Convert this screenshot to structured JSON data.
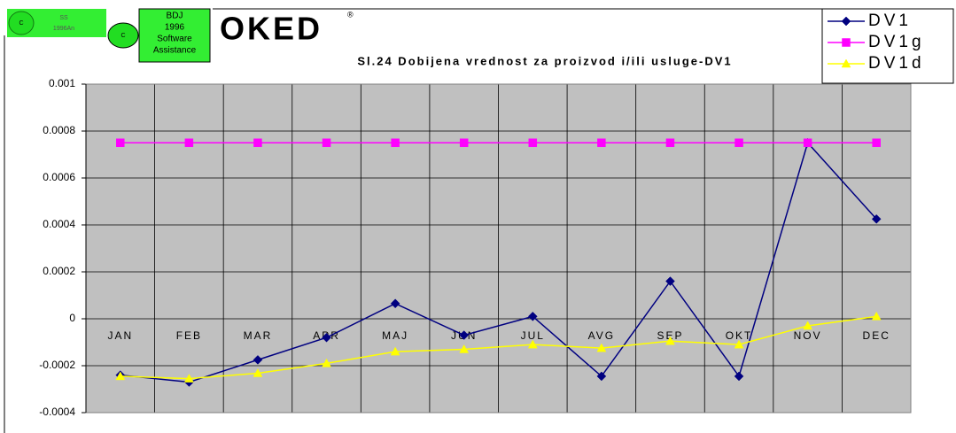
{
  "logos": {
    "badge_small_1": "C",
    "badge_small_2": "SS",
    "badge_small_3": "1996An",
    "badge_c": "C",
    "bdj_lines": [
      "BDJ",
      "1996",
      "Software",
      "Assistance"
    ],
    "brand": "OKED",
    "registered": "®"
  },
  "chart_data": {
    "type": "line",
    "title": "Sl.24 Dobijena vrednost za proizvod i/ili usluge-DV1",
    "categories": [
      "JAN",
      "FEB",
      "MAR",
      "APR",
      "MAJ",
      "JUN",
      "JUL",
      "AVG",
      "SEP",
      "OKT",
      "NOV",
      "DEC"
    ],
    "series": [
      {
        "name": "DV1",
        "color": "#000080",
        "marker": "diamond",
        "values": [
          -0.00024,
          -0.00027,
          -0.000175,
          -8e-05,
          6.5e-05,
          -7e-05,
          1e-05,
          -0.000245,
          0.00016,
          -0.000245,
          0.00075,
          0.000425
        ]
      },
      {
        "name": "DV1g",
        "color": "#ff00ff",
        "marker": "square",
        "values": [
          0.00075,
          0.00075,
          0.00075,
          0.00075,
          0.00075,
          0.00075,
          0.00075,
          0.00075,
          0.00075,
          0.00075,
          0.00075,
          0.00075
        ]
      },
      {
        "name": "DV1d",
        "color": "#ffff00",
        "marker": "triangle",
        "values": [
          -0.000245,
          -0.000255,
          -0.000232,
          -0.00019,
          -0.00014,
          -0.00013,
          -0.00011,
          -0.000125,
          -9.5e-05,
          -0.00011,
          -3e-05,
          1e-05
        ]
      }
    ],
    "ylim": [
      -0.0004,
      0.001
    ],
    "yticks": [
      -0.0004,
      -0.0002,
      0,
      0.0002,
      0.0004,
      0.0006,
      0.0008,
      0.001
    ],
    "grid": true,
    "legend": "top-right"
  }
}
